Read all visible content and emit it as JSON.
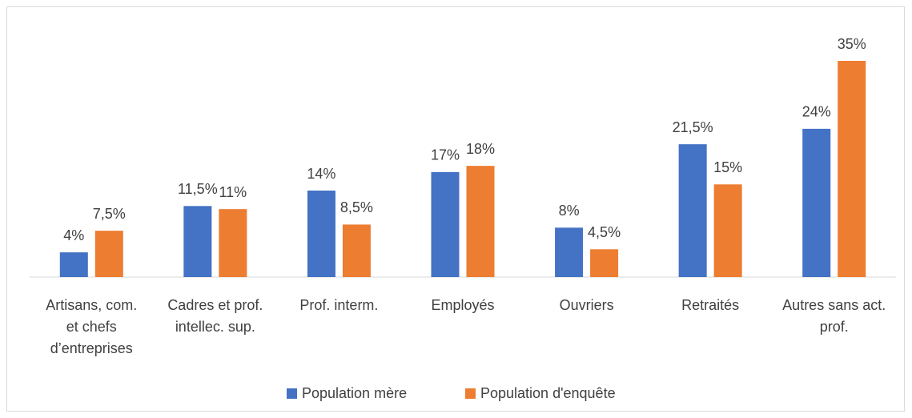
{
  "chart_data": {
    "type": "bar",
    "categories": [
      [
        "Artisans, com.",
        "et chefs",
        "d’entreprises"
      ],
      [
        "Cadres et prof.",
        "intellec. sup."
      ],
      [
        "Prof. interm."
      ],
      [
        "Employés"
      ],
      [
        "Ouvriers"
      ],
      [
        "Retraités"
      ],
      [
        "Autres sans act.",
        "prof."
      ]
    ],
    "series": [
      {
        "name": "Population mère",
        "color": "#4472c4",
        "values": [
          4,
          11.5,
          14,
          17,
          8,
          21.5,
          24
        ],
        "value_labels": [
          "4%",
          "11,5%",
          "14%",
          "17%",
          "8%",
          "21,5%",
          "24%"
        ]
      },
      {
        "name": "Population d'enquête",
        "color": "#ed7d31",
        "values": [
          7.5,
          11,
          8.5,
          18,
          4.5,
          15,
          35
        ],
        "value_labels": [
          "7,5%",
          "11%",
          "8,5%",
          "18%",
          "4,5%",
          "15%",
          "35%"
        ]
      }
    ],
    "legend": "bottom"
  }
}
